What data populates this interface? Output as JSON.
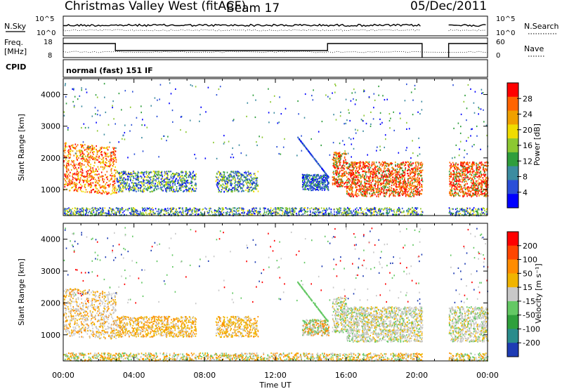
{
  "header": {
    "title": "Christmas Valley West (fitACF)",
    "beam": "Beam 17",
    "date": "05/Dec/2011"
  },
  "strip_noise": {
    "left_label": "N.Sky",
    "right_label": "N.Search",
    "ticks_left": [
      "10^5",
      "10^0"
    ],
    "ticks_right": [
      "10^5",
      "10^0"
    ]
  },
  "strip_freq": {
    "left_label_1": "Freq.",
    "left_label_2": "[MHz]",
    "right_label": "Nave",
    "ticks_left": [
      "18",
      "8"
    ],
    "ticks_right": [
      "60",
      "0"
    ]
  },
  "cpid": {
    "label": "CPID",
    "mode": "normal (fast) 151 IF"
  },
  "colors": {
    "power_scale": [
      "#0000ff",
      "#2a4fd8",
      "#3c8ca0",
      "#2f9e3c",
      "#8cc832",
      "#f0dc00",
      "#f0a000",
      "#ff6400",
      "#ff0000"
    ],
    "velocity_scale": [
      "#1e3cb4",
      "#2a8c8c",
      "#2fa03c",
      "#64c864",
      "#c8c8c8",
      "#f0b400",
      "#ff8c00",
      "#ff4600",
      "#ff0000"
    ]
  },
  "chart_data": [
    {
      "type": "heatmap",
      "title": "",
      "xlabel": "Time UT",
      "ylabel": "Slant Range [km]",
      "xlim": [
        "00:00",
        "00:00"
      ],
      "ylim": [
        180,
        4500
      ],
      "x_ticks": [
        "00:00",
        "04:00",
        "08:00",
        "12:00",
        "16:00",
        "20:00",
        "00:00"
      ],
      "y_ticks": [
        1000,
        2000,
        3000,
        4000
      ],
      "colorbar": {
        "label": "Power [dB]",
        "ticks": [
          "28",
          "24",
          "20",
          "16",
          "12",
          "8",
          "4"
        ],
        "range": [
          0,
          30
        ]
      }
    },
    {
      "type": "heatmap",
      "title": "",
      "xlabel": "Time UT",
      "ylabel": "Slant Range [km]",
      "xlim": [
        "00:00",
        "00:00"
      ],
      "ylim": [
        180,
        4500
      ],
      "x_ticks": [
        "00:00",
        "04:00",
        "08:00",
        "12:00",
        "16:00",
        "20:00",
        "00:00"
      ],
      "y_ticks": [
        1000,
        2000,
        3000,
        4000
      ],
      "colorbar": {
        "label": "Velocity [m s⁻¹]",
        "ticks": [
          "200",
          "100",
          "50",
          "15",
          "-15",
          "-50",
          "-100",
          "-200"
        ],
        "range": [
          -250,
          250
        ]
      }
    }
  ],
  "footer": {
    "xlabel": "Time UT"
  }
}
